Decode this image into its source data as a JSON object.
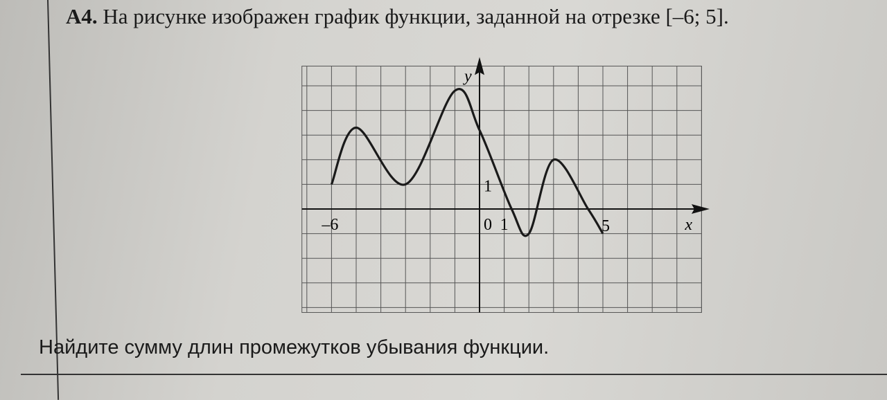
{
  "problem": {
    "number": "A4.",
    "statement": "На рисунке изображен график функции, заданной на отрезке [–6; 5].",
    "question": "Найдите сумму длин промежутков убывания функции."
  },
  "chart_data": {
    "type": "line",
    "xlabel": "x",
    "ylabel": "y",
    "tick_labels": {
      "x_start": "–6",
      "origin": "0",
      "x_one": "1",
      "x_end": "5",
      "y_one": "1"
    },
    "domain": [
      -6,
      5
    ],
    "grid": true,
    "xlim": [
      -7,
      9
    ],
    "ylim": [
      -4,
      5.8
    ],
    "points": [
      [
        -6,
        1
      ],
      [
        -5,
        3.3
      ],
      [
        -3,
        1
      ],
      [
        -1,
        4.8
      ],
      [
        0,
        3.2
      ],
      [
        1.3,
        0
      ],
      [
        2,
        -1
      ],
      [
        3,
        2
      ],
      [
        4.4,
        0
      ],
      [
        5,
        -1
      ]
    ],
    "colors": {
      "curve": "#1a1a1a",
      "grid": "#555555"
    }
  }
}
